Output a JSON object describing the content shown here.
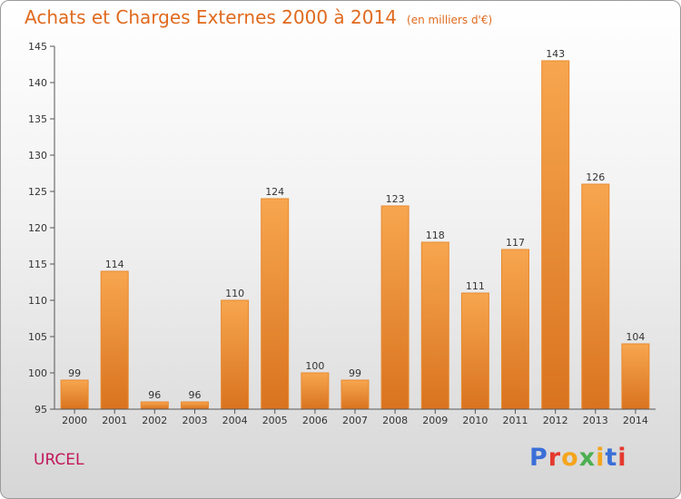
{
  "title": "Achats et Charges Externes 2000 à 2014",
  "unit": "(en milliers d'€)",
  "commune": "URCEL",
  "logo": {
    "text": "Proxiti",
    "letter_colors": [
      "#3a6fd8",
      "#e5392e",
      "#f4a51c",
      "#4caf50",
      "#f4a51c",
      "#3a6fd8",
      "#e5392e"
    ]
  },
  "colors": {
    "bar_top": "#f7a64f",
    "bar_bottom": "#d9731f",
    "bar_edge": "#e9892e"
  },
  "chart_data": {
    "type": "bar",
    "categories": [
      "2000",
      "2001",
      "2002",
      "2003",
      "2004",
      "2005",
      "2006",
      "2007",
      "2008",
      "2009",
      "2010",
      "2011",
      "2012",
      "2013",
      "2014"
    ],
    "values": [
      99,
      114,
      96,
      96,
      110,
      124,
      100,
      99,
      123,
      118,
      111,
      117,
      143,
      126,
      104
    ],
    "ylim": [
      95,
      145
    ],
    "yticks": [
      95,
      100,
      105,
      110,
      115,
      120,
      125,
      130,
      135,
      140,
      145
    ],
    "grid": false
  }
}
